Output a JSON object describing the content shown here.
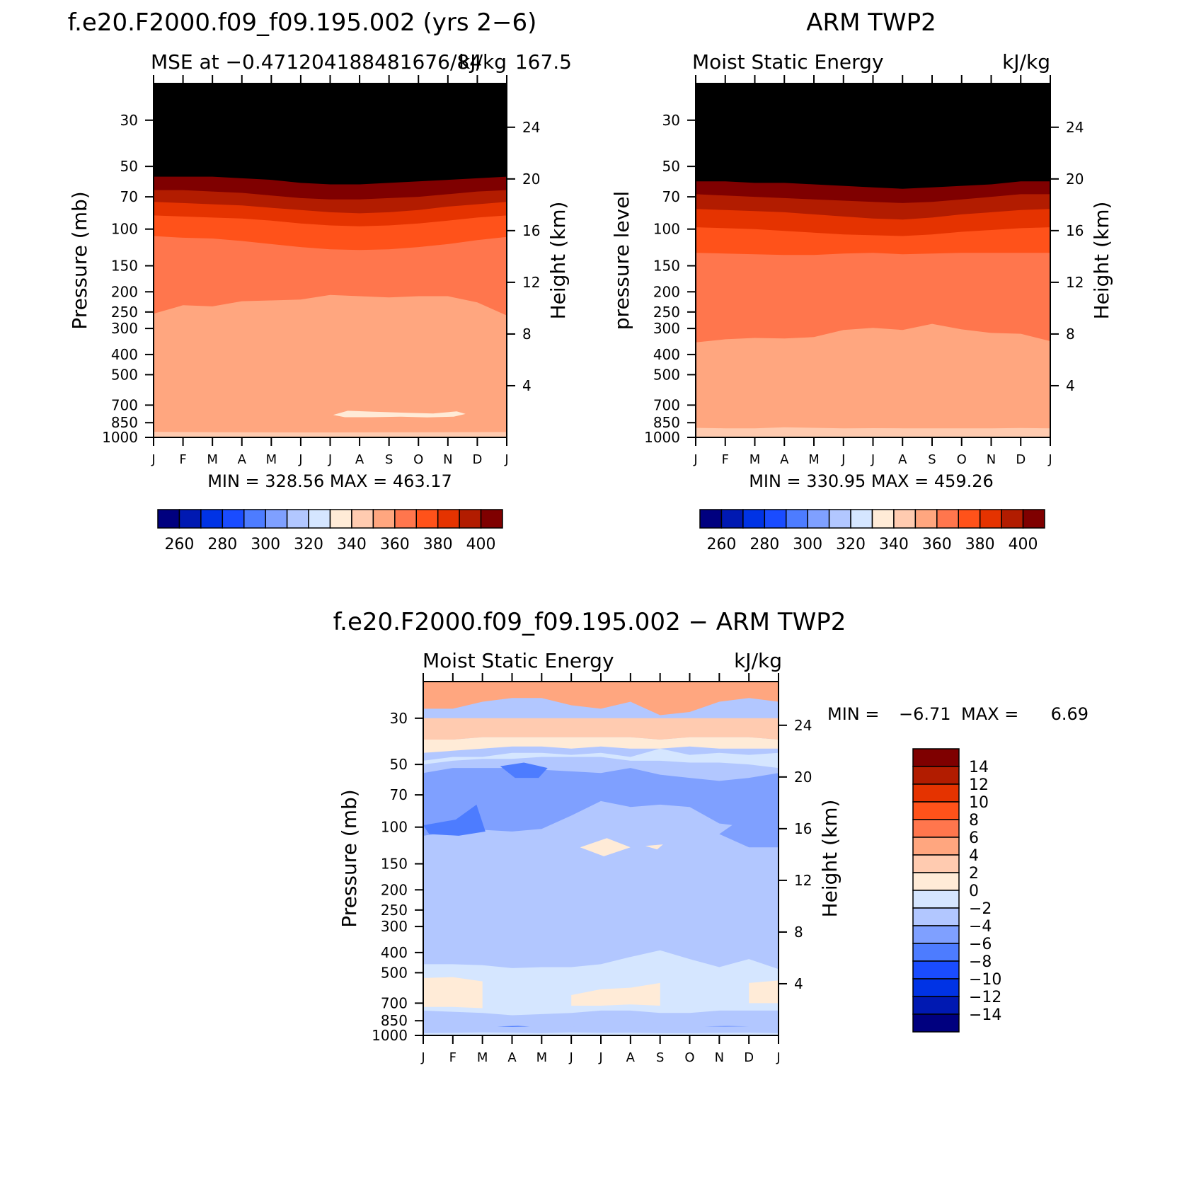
{
  "palette": {
    "mean": [
      "#00007f",
      "#0019b2",
      "#0033e5",
      "#1a4cff",
      "#4d7cff",
      "#7fa0ff",
      "#b2c7ff",
      "#d5e6ff",
      "#ffebd7",
      "#ffcbb0",
      "#ffa67f",
      "#ff764d",
      "#ff521a",
      "#e53300",
      "#b21c00",
      "#7f0000"
    ],
    "diff": [
      "#00007f",
      "#0019b2",
      "#0033e5",
      "#1a4cff",
      "#4d7cff",
      "#7fa0ff",
      "#b2c7ff",
      "#d5e6ff",
      "#ffebd7",
      "#ffcbb0",
      "#ffa67f",
      "#ff764d",
      "#ff521a",
      "#e53300",
      "#b21c00",
      "#7f0000"
    ]
  },
  "chart_data": [
    {
      "type": "heatmap",
      "title": "f.e20.F2000.f09_f09.195.002 (yrs 2-6)",
      "subtitle_left": "MSE at -0.471204188481676/84",
      "subtitle_right_units": "kJ/kg",
      "subtitle_right_overlap": "167.5",
      "ylabel": "Pressure (mb)",
      "ylabel_right": "Height (km)",
      "months": [
        "J",
        "F",
        "M",
        "A",
        "M",
        "J",
        "J",
        "A",
        "S",
        "O",
        "N",
        "D",
        "J"
      ],
      "pressure_ticks": [
        30,
        50,
        70,
        100,
        150,
        200,
        250,
        300,
        400,
        500,
        700,
        850,
        1000
      ],
      "height_ticks": [
        4,
        8,
        12,
        16,
        20,
        24
      ],
      "ylim": [
        1000,
        20
      ],
      "stats": "MIN = 328.56 MAX = 463.17",
      "colorbar_labels": [
        "260",
        "280",
        "300",
        "320",
        "340",
        "360",
        "380",
        "400"
      ],
      "colorbar_levels": [
        250,
        260,
        270,
        280,
        290,
        300,
        310,
        320,
        330,
        340,
        350,
        360,
        370,
        380,
        390,
        400
      ],
      "contour_boundaries": [
        {
          "value": 340,
          "pressure": [
            940,
            942,
            944,
            945,
            946,
            947,
            947,
            946,
            945,
            945,
            944,
            943,
            942
          ]
        },
        {
          "value": 350,
          "pressure": [
            255,
            232,
            235,
            222,
            220,
            218,
            207,
            210,
            213,
            210,
            210,
            225,
            260
          ]
        },
        {
          "value": 360,
          "pressure": [
            108,
            110,
            111,
            114,
            118,
            122,
            125,
            126,
            125,
            122,
            118,
            113,
            109
          ]
        },
        {
          "value": 370,
          "pressure": [
            86,
            87,
            88,
            89,
            91,
            94,
            96,
            97,
            96,
            94,
            91,
            88,
            86
          ]
        },
        {
          "value": 380,
          "pressure": [
            74,
            75,
            76,
            77,
            79,
            81,
            83,
            84,
            83,
            81,
            78,
            76,
            74
          ]
        },
        {
          "value": 390,
          "pressure": [
            65,
            65,
            66,
            67,
            69,
            71,
            72,
            72,
            71,
            70,
            68,
            66,
            65
          ]
        },
        {
          "value": 400,
          "pressure": [
            56,
            56,
            56,
            57,
            58,
            60,
            61,
            61,
            60,
            59,
            58,
            57,
            56
          ]
        }
      ],
      "patches": [
        {
          "value": 320,
          "points": [
            [
              6.1,
              780
            ],
            [
              6.6,
              745
            ],
            [
              7.4,
              752
            ],
            [
              8.6,
              762
            ],
            [
              9.5,
              768
            ],
            [
              10.3,
              750
            ],
            [
              10.6,
              772
            ],
            [
              10.2,
              795
            ],
            [
              9.3,
              802
            ],
            [
              8.4,
              795
            ],
            [
              7.4,
              800
            ],
            [
              6.5,
              800
            ]
          ]
        }
      ],
      "data_range": [
        328.56,
        463.17
      ]
    },
    {
      "type": "heatmap",
      "title": "ARM TWP2",
      "subtitle_left": "Moist Static Energy",
      "subtitle_right_units": "kJ/kg",
      "ylabel": "pressure level",
      "ylabel_right": "Height (km)",
      "months": [
        "J",
        "F",
        "M",
        "A",
        "M",
        "J",
        "J",
        "A",
        "S",
        "O",
        "N",
        "D",
        "J"
      ],
      "pressure_ticks": [
        30,
        50,
        70,
        100,
        150,
        200,
        250,
        300,
        400,
        500,
        700,
        850,
        1000
      ],
      "height_ticks": [
        4,
        8,
        12,
        16,
        20,
        24
      ],
      "ylim": [
        1000,
        20
      ],
      "stats": "MIN = 330.95 MAX = 459.26",
      "colorbar_labels": [
        "260",
        "280",
        "300",
        "320",
        "340",
        "360",
        "380",
        "400"
      ],
      "colorbar_levels": [
        250,
        260,
        270,
        280,
        290,
        300,
        310,
        320,
        330,
        340,
        350,
        360,
        370,
        380,
        390,
        400
      ],
      "contour_boundaries": [
        {
          "value": 340,
          "pressure": [
            900,
            905,
            905,
            895,
            900,
            905,
            903,
            905,
            905,
            905,
            905,
            902,
            905
          ]
        },
        {
          "value": 350,
          "pressure": [
            350,
            338,
            333,
            335,
            330,
            305,
            298,
            305,
            285,
            303,
            315,
            318,
            345
          ]
        },
        {
          "value": 360,
          "pressure": [
            130,
            131,
            132,
            133,
            133,
            131,
            130,
            132,
            131,
            130,
            130,
            130,
            130
          ]
        },
        {
          "value": 370,
          "pressure": [
            98,
            99,
            100,
            102,
            104,
            106,
            107,
            108,
            106,
            103,
            101,
            99,
            98
          ]
        },
        {
          "value": 380,
          "pressure": [
            80,
            81,
            82,
            83,
            85,
            87,
            89,
            90,
            88,
            85,
            83,
            81,
            80
          ]
        },
        {
          "value": 390,
          "pressure": [
            68,
            69,
            70,
            71,
            72,
            73,
            74,
            75,
            74,
            72,
            70,
            68,
            68
          ]
        },
        {
          "value": 400,
          "pressure": [
            59,
            59,
            60,
            60,
            61,
            62,
            63,
            64,
            63,
            62,
            61,
            59,
            59
          ]
        }
      ],
      "data_range": [
        330.95,
        459.26
      ]
    },
    {
      "type": "heatmap",
      "title": "f.e20.F2000.f09_f09.195.002 - ARM TWP2",
      "subtitle_left": "Moist Static Energy",
      "subtitle_right_units": "kJ/kg",
      "ylabel": "Pressure (mb)",
      "ylabel_right": "Height (km)",
      "months": [
        "J",
        "F",
        "M",
        "A",
        "M",
        "J",
        "J",
        "A",
        "S",
        "O",
        "N",
        "D",
        "J"
      ],
      "pressure_ticks": [
        30,
        50,
        70,
        100,
        150,
        200,
        250,
        300,
        400,
        500,
        700,
        850,
        1000
      ],
      "height_ticks": [
        4,
        8,
        12,
        16,
        20,
        24
      ],
      "ylim": [
        1000,
        20
      ],
      "stats_min_label": "MIN =",
      "stats_min": "-6.71",
      "stats_max_label": "MAX =",
      "stats_max": "6.69",
      "colorbar_labels": [
        "14",
        "12",
        "10",
        "8",
        "6",
        "4",
        "2",
        "0",
        "-2",
        "-4",
        "-6",
        "-8",
        "-10",
        "-12",
        "-14"
      ],
      "colorbar_levels": [
        -14,
        -12,
        -10,
        -8,
        -6,
        -4,
        -2,
        0,
        2,
        4,
        6,
        8,
        10,
        12,
        14
      ],
      "band_base_level": -4,
      "bands": [
        {
          "value": -2,
          "top": [
            900,
            900,
            900,
            900,
            900,
            900,
            900,
            900,
            900,
            900,
            900,
            900,
            900
          ],
          "bottom": [
            1000,
            1000,
            1000,
            1000,
            1000,
            1000,
            1000,
            1000,
            1000,
            1000,
            1000,
            1000,
            1000
          ]
        },
        {
          "value": -4,
          "top": [
            865,
            860,
            862,
            866,
            862,
            860,
            858,
            862,
            866,
            870,
            868,
            862,
            860
          ],
          "bottom": [
            975,
            972,
            968,
            970,
            975,
            968,
            972,
            970,
            975,
            975,
            972,
            970,
            975
          ]
        },
        {
          "value": -2,
          "top": [
            455,
            455,
            460,
            475,
            470,
            470,
            455,
            420,
            390,
            430,
            470,
            430,
            480
          ],
          "bottom": [
            760,
            770,
            780,
            800,
            790,
            780,
            760,
            760,
            780,
            780,
            760,
            760,
            760
          ]
        },
        {
          "value": 0,
          "top": [
            530,
            525,
            550,
            0,
            0,
            640,
            600,
            590,
            560,
            0,
            0,
            560,
            545
          ],
          "bottom": [
            730,
            730,
            740,
            0,
            0,
            720,
            720,
            710,
            720,
            0,
            0,
            700,
            700
          ]
        },
        {
          "value": -2,
          "top": [
            48,
            46,
            46,
            44,
            44,
            45,
            44,
            46,
            42,
            45,
            44,
            45,
            44
          ],
          "bottom": [
            50,
            48,
            47,
            47,
            46,
            46,
            46,
            48,
            48,
            49,
            49,
            50,
            52
          ]
        },
        {
          "value": 0,
          "top": [
            38,
            38,
            37,
            37,
            37,
            37,
            37,
            37,
            38,
            37,
            37,
            37,
            38
          ],
          "bottom": [
            44,
            43,
            42,
            41,
            41,
            42,
            41,
            42,
            42,
            41,
            42,
            42,
            42
          ]
        },
        {
          "value": 2,
          "top": [
            30,
            30,
            30,
            30,
            30,
            30,
            30,
            30,
            30,
            30,
            30,
            30,
            30
          ],
          "bottom": [
            38,
            38,
            37,
            37,
            37,
            37,
            37,
            37,
            38,
            37,
            37,
            37,
            38
          ]
        },
        {
          "value": 4,
          "top": [
            20,
            20,
            20,
            20,
            20,
            20,
            20,
            20,
            20,
            20,
            20,
            20,
            20
          ],
          "bottom": [
            27,
            27,
            25,
            24,
            24,
            26,
            27,
            25,
            29,
            28,
            25,
            24,
            25
          ]
        },
        {
          "value": -6,
          "top": [
            55,
            52,
            52,
            52,
            53,
            54,
            55,
            52,
            56,
            58,
            60,
            58,
            55
          ],
          "bottom": [
            110,
            105,
            103,
            105,
            102,
            88,
            75,
            80,
            78,
            80,
            96,
            100,
            110
          ]
        }
      ],
      "patches": [
        {
          "value": -8,
          "points": [
            [
              0.0,
              98
            ],
            [
              1.1,
              92
            ],
            [
              1.8,
              78
            ],
            [
              2.1,
              105
            ],
            [
              1.2,
              110
            ],
            [
              0.2,
              108
            ]
          ]
        },
        {
          "value": -8,
          "points": [
            [
              2.6,
              51
            ],
            [
              3.4,
              49
            ],
            [
              4.2,
              52
            ],
            [
              3.9,
              58
            ],
            [
              3.1,
              58
            ]
          ]
        },
        {
          "value": 0,
          "points": [
            [
              5.3,
              125
            ],
            [
              6.2,
              113
            ],
            [
              7.0,
              125
            ],
            [
              6.1,
              138
            ]
          ]
        },
        {
          "value": 0,
          "points": [
            [
              7.5,
              123
            ],
            [
              8.1,
              121
            ],
            [
              7.9,
              128
            ]
          ]
        },
        {
          "value": -6,
          "points": [
            [
              10.0,
              108
            ],
            [
              10.8,
              90
            ],
            [
              12.0,
              72
            ],
            [
              12.0,
              125
            ],
            [
              11.0,
              125
            ]
          ]
        },
        {
          "value": -4,
          "points": [
            [
              1.4,
              925
            ],
            [
              2.8,
              905
            ],
            [
              3.8,
              898
            ],
            [
              5.0,
              905
            ],
            [
              6.0,
              900
            ],
            [
              7.0,
              895
            ],
            [
              8.0,
              902
            ],
            [
              7.5,
              925
            ],
            [
              6.4,
              935
            ],
            [
              5.2,
              935
            ],
            [
              4.0,
              935
            ],
            [
              2.8,
              938
            ]
          ]
        },
        {
          "value": -8,
          "points": [
            [
              2.5,
              905
            ],
            [
              3.2,
              900
            ],
            [
              3.6,
              906
            ],
            [
              3.0,
              910
            ]
          ]
        },
        {
          "value": -6,
          "points": [
            [
              9.5,
              905
            ],
            [
              10.3,
              900
            ],
            [
              11.0,
              905
            ],
            [
              10.2,
              910
            ]
          ]
        }
      ],
      "data_range": [
        -6.71,
        6.69
      ]
    }
  ]
}
